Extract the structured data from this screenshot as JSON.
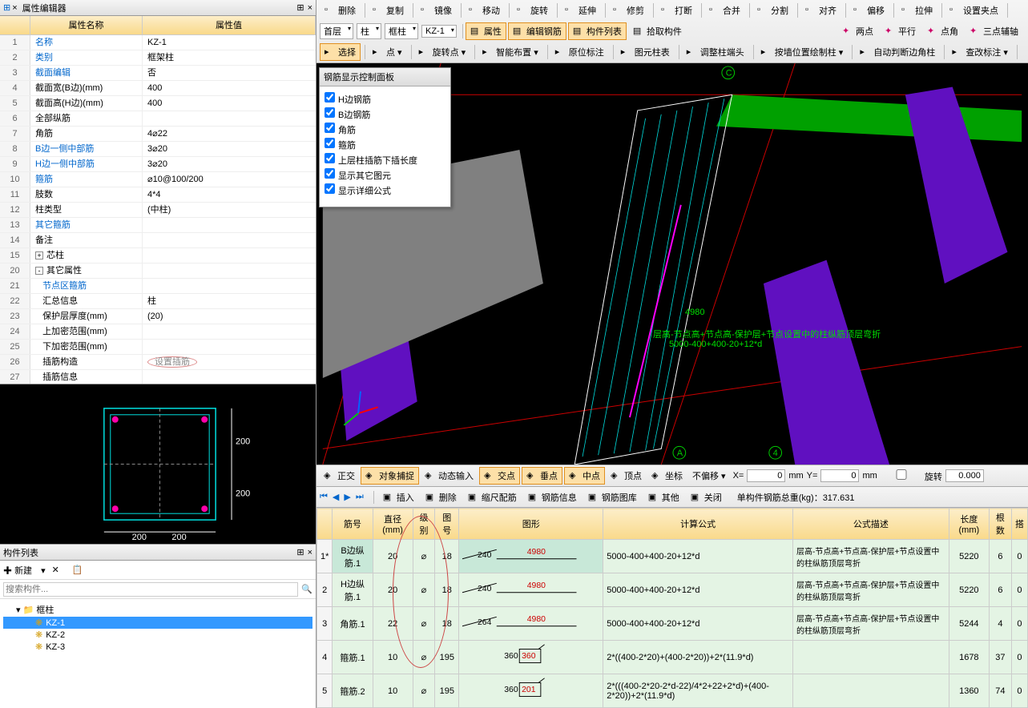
{
  "left": {
    "propEditor": {
      "title": "属性编辑器",
      "h_name": "属性名称",
      "h_value": "属性值",
      "rows": [
        {
          "n": "1",
          "k": "名称",
          "v": "KZ-1",
          "blue": true
        },
        {
          "n": "2",
          "k": "类别",
          "v": "框架柱",
          "blue": true
        },
        {
          "n": "3",
          "k": "截面编辑",
          "v": "否",
          "blue": true
        },
        {
          "n": "4",
          "k": "截面宽(B边)(mm)",
          "v": "400"
        },
        {
          "n": "5",
          "k": "截面高(H边)(mm)",
          "v": "400"
        },
        {
          "n": "6",
          "k": "全部纵筋",
          "v": ""
        },
        {
          "n": "7",
          "k": "角筋",
          "v": "4⌀22"
        },
        {
          "n": "8",
          "k": "B边一侧中部筋",
          "v": "3⌀20",
          "blue": true
        },
        {
          "n": "9",
          "k": "H边一侧中部筋",
          "v": "3⌀20",
          "blue": true
        },
        {
          "n": "10",
          "k": "箍筋",
          "v": "⌀10@100/200",
          "blue": true
        },
        {
          "n": "11",
          "k": "肢数",
          "v": "4*4"
        },
        {
          "n": "12",
          "k": "柱类型",
          "v": "(中柱)"
        },
        {
          "n": "13",
          "k": "其它箍筋",
          "v": "",
          "blue": true
        },
        {
          "n": "14",
          "k": "备注",
          "v": ""
        },
        {
          "n": "15",
          "k": "芯柱",
          "v": "",
          "exp": "+"
        },
        {
          "n": "20",
          "k": "其它属性",
          "v": "",
          "exp": "-"
        },
        {
          "n": "21",
          "k": "节点区箍筋",
          "v": "",
          "blue": true,
          "indent": true
        },
        {
          "n": "22",
          "k": "汇总信息",
          "v": "柱",
          "indent": true
        },
        {
          "n": "23",
          "k": "保护层厚度(mm)",
          "v": "(20)",
          "indent": true
        },
        {
          "n": "24",
          "k": "上加密范围(mm)",
          "v": "",
          "indent": true
        },
        {
          "n": "25",
          "k": "下加密范围(mm)",
          "v": "",
          "indent": true
        },
        {
          "n": "26",
          "k": "插筋构造",
          "v": "设置插筋",
          "indent": true,
          "circled": true
        },
        {
          "n": "27",
          "k": "插筋信息",
          "v": "",
          "indent": true
        }
      ]
    },
    "componentList": {
      "title": "构件列表",
      "newBtn": "新建",
      "searchPlaceholder": "搜索构件...",
      "root": "框柱",
      "items": [
        "KZ-1",
        "KZ-2",
        "KZ-3"
      ],
      "selected": "KZ-1"
    },
    "section": {
      "w": "200",
      "h": "200"
    }
  },
  "ribbon": {
    "row1": [
      "删除",
      "复制",
      "镜像",
      "移动",
      "旋转",
      "延伸",
      "修剪",
      "打断",
      "合并",
      "分割",
      "对齐",
      "偏移",
      "拉伸",
      "设置夹点"
    ],
    "row2": {
      "dds": [
        "首层",
        "柱",
        "框柱",
        "KZ-1"
      ],
      "btns": [
        "属性",
        "编辑钢筋",
        "构件列表",
        "拾取构件"
      ],
      "snap": [
        "两点",
        "平行",
        "点角",
        "三点辅轴"
      ]
    },
    "row3": [
      "选择",
      "点",
      "旋转点",
      "智能布置",
      "原位标注",
      "图元柱表",
      "调整柱端头",
      "按墙位置绘制柱",
      "自动判断边角柱",
      "查改标注"
    ]
  },
  "floatPanel": {
    "title": "钢筋显示控制面板",
    "items": [
      "H边钢筋",
      "B边钢筋",
      "角筋",
      "箍筋",
      "上层柱插筋下插长度",
      "显示其它图元",
      "显示详细公式"
    ]
  },
  "viewport": {
    "dim": "4980",
    "formula": "层高-节点高+节点高-保护层+节点设置中的柱纵筋顶层弯折",
    "calc": "5000-400+400-20+12*d",
    "axis": {
      "c": "C",
      "a": "A",
      "n4": "4"
    }
  },
  "status": {
    "btns": [
      "正交",
      "对象捕捉",
      "动态输入",
      "交点",
      "垂点",
      "中点",
      "顶点",
      "坐标"
    ],
    "offset": "不偏移",
    "x": "0",
    "y": "0",
    "rot": "旋转",
    "rotv": "0.000"
  },
  "rebarTb": {
    "nav": [
      "⏮",
      "◀",
      "▶",
      "⏭"
    ],
    "btns": [
      "插入",
      "删除",
      "缩尺配筋",
      "钢筋信息",
      "钢筋图库",
      "其他",
      "关闭"
    ],
    "total": "单构件钢筋总重(kg)：317.631"
  },
  "rebarTable": {
    "headers": [
      "",
      "筋号",
      "直径(mm)",
      "级别",
      "图号",
      "图形",
      "计算公式",
      "公式描述",
      "长度(mm)",
      "根数",
      "搭"
    ],
    "rows": [
      {
        "n": "1*",
        "name": "B边纵筋.1",
        "d": "20",
        "lvl": "⌀",
        "fig": "18",
        "s1": "240",
        "s2": "4980",
        "formula": "5000-400+400-20+12*d",
        "desc": "层高-节点高+节点高-保护层+节点设置中的柱纵筋顶层弯折",
        "len": "5220",
        "qty": "6",
        "lap": "0",
        "hl": true
      },
      {
        "n": "2",
        "name": "H边纵筋.1",
        "d": "20",
        "lvl": "⌀",
        "fig": "18",
        "s1": "240",
        "s2": "4980",
        "formula": "5000-400+400-20+12*d",
        "desc": "层高-节点高+节点高-保护层+节点设置中的柱纵筋顶层弯折",
        "len": "5220",
        "qty": "6",
        "lap": "0"
      },
      {
        "n": "3",
        "name": "角筋.1",
        "d": "22",
        "lvl": "⌀",
        "fig": "18",
        "s1": "264",
        "s2": "4980",
        "formula": "5000-400+400-20+12*d",
        "desc": "层高-节点高+节点高-保护层+节点设置中的柱纵筋顶层弯折",
        "len": "5244",
        "qty": "4",
        "lap": "0"
      },
      {
        "n": "4",
        "name": "箍筋.1",
        "d": "10",
        "lvl": "⌀",
        "fig": "195",
        "s1": "360",
        "s2": "360",
        "formula": "2*((400-2*20)+(400-2*20))+2*(11.9*d)",
        "desc": "",
        "len": "1678",
        "qty": "37",
        "lap": "0",
        "box": true
      },
      {
        "n": "5",
        "name": "箍筋.2",
        "d": "10",
        "lvl": "⌀",
        "fig": "195",
        "s1": "360",
        "s2": "201",
        "formula": "2*(((400-2*20-2*d-22)/4*2+22+2*d)+(400-2*20))+2*(11.9*d)",
        "desc": "",
        "len": "1360",
        "qty": "74",
        "lap": "0",
        "box": true
      }
    ]
  }
}
